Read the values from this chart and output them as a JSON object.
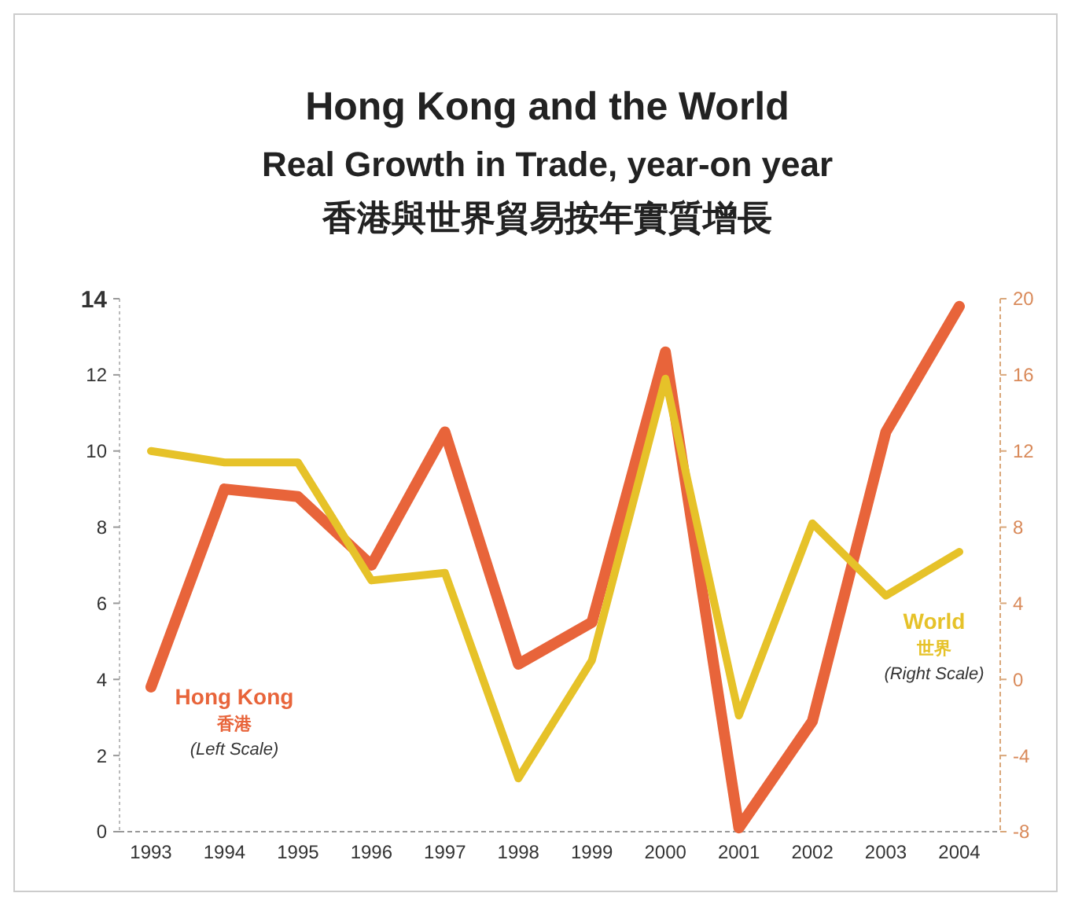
{
  "chart_data": {
    "type": "line",
    "title": "Hong Kong and the World",
    "subtitle": "Real Growth in Trade, year-on year\n香港與世界貿易按年實質增長",
    "categories": [
      "1993",
      "1994",
      "1995",
      "1996",
      "1997",
      "1998",
      "1999",
      "2000",
      "2001",
      "2002",
      "2003",
      "2004"
    ],
    "series": [
      {
        "name": "Hong Kong",
        "color": "#e8643a",
        "values": [
          3.8,
          9.0,
          8.8,
          7.0,
          10.5,
          4.4,
          5.5,
          12.6,
          0.1,
          2.9,
          10.5,
          13.8
        ]
      },
      {
        "name": "World",
        "color": "#e6c229",
        "axis": "y2",
        "values": [
          12,
          11.4,
          11.4,
          5.2,
          5.6,
          -5.2,
          1,
          15.8,
          -1.9,
          8.2,
          4.4,
          6.7
        ]
      }
    ],
    "ylim": [
      0,
      14
    ],
    "yticks": [
      0,
      2,
      4,
      6,
      8,
      10,
      12,
      14
    ],
    "y2lim": [
      -8,
      20
    ],
    "y2ticks": [
      -8,
      -4,
      0,
      4,
      8,
      12,
      16,
      20
    ],
    "annotations": [
      "香港",
      "(Left Scale)",
      "世界",
      "(Right Scale)"
    ],
    "grid": false,
    "marker": "none",
    "line_style": "solid"
  }
}
